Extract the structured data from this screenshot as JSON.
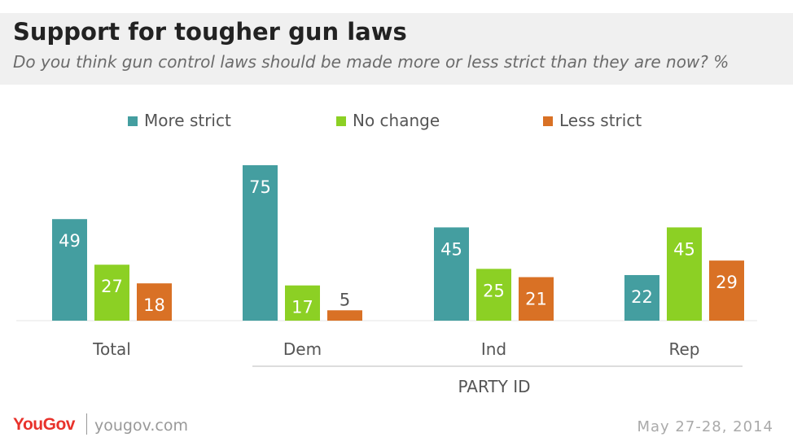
{
  "header": {
    "title": "Support for tougher gun laws",
    "subtitle": "Do you think gun control laws should be made more or less strict than they are now? %"
  },
  "footer": {
    "logo": "YouGov",
    "site": "yougov.com",
    "date": "May 27-28, 2014"
  },
  "chart_data": {
    "type": "bar",
    "title": "Support for tougher gun laws",
    "subtitle": "Do you think gun control laws should be made more or less strict than they are now? %",
    "categories": [
      "Total",
      "Dem",
      "Ind",
      "Rep"
    ],
    "group_label": "PARTY ID",
    "group_label_covers": [
      "Dem",
      "Ind",
      "Rep"
    ],
    "series": [
      {
        "name": "More strict",
        "color": "#449ea0",
        "values": [
          49,
          75,
          45,
          22
        ]
      },
      {
        "name": "No change",
        "color": "#8cd024",
        "values": [
          27,
          17,
          25,
          45
        ]
      },
      {
        "name": "Less strict",
        "color": "#d97125",
        "values": [
          18,
          5,
          21,
          29
        ]
      }
    ],
    "ylim": [
      0,
      75
    ],
    "grid": false,
    "legend_position": "top",
    "data_labels": true
  }
}
